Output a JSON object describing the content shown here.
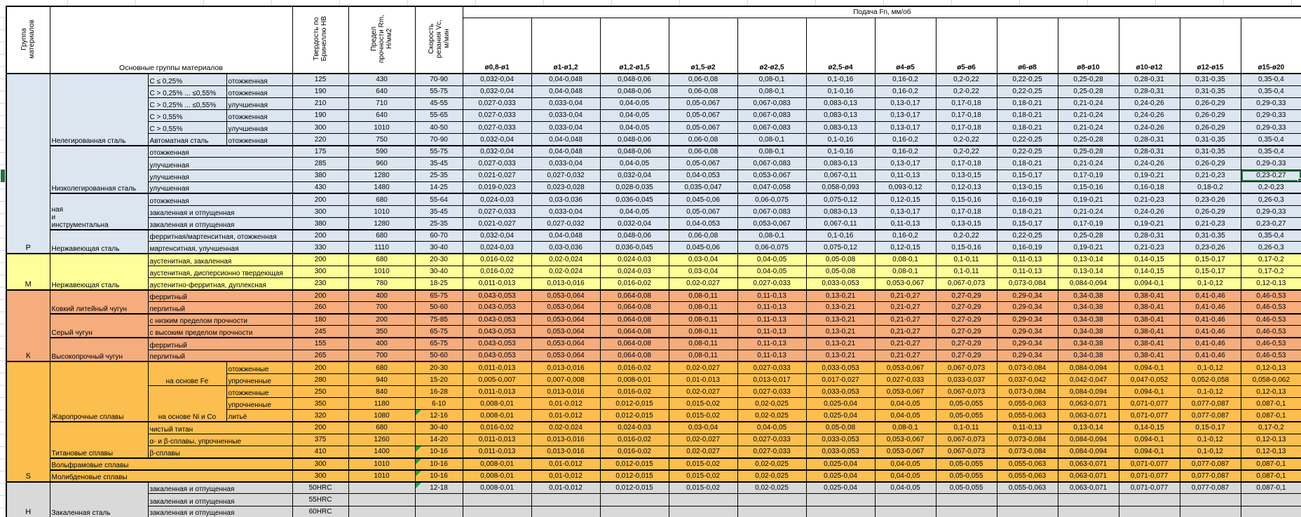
{
  "sheet": {
    "headers": {
      "group_column": "Группа\nматериалов",
      "main_groups": "Основные группы материалов",
      "hardness": "Твердость по\nБринеллю НВ",
      "strength": "Предел\nпрочности Rm,\nН/мм2",
      "speed": "Скорость\nрезания Vc,\nм/мин",
      "feed": "Подача Fn, мм/об",
      "diameters": [
        "ø0,8-ø1",
        "ø1-ø1,2",
        "ø1,2-ø1,5",
        "ø1,5-ø2",
        "ø2-ø2,5",
        "ø2,5-ø4",
        "ø4-ø5",
        "ø5-ø6",
        "ø6-ø8",
        "ø8-ø10",
        "ø10-ø12",
        "ø12-ø15",
        "ø15-ø20"
      ]
    },
    "colors": {
      "P": "#DCE6F1",
      "M": "#FFFF99",
      "K": "#F5AD7D",
      "S": "#FCBF4F",
      "H": "#D9D9D9",
      "selection": "#1F7244",
      "flag": "#21A038",
      "grid": "#000000"
    },
    "value_sets": {
      "V1": [
        "0,032-0,04",
        "0,04-0,048",
        "0,048-0,06",
        "0,06-0,08",
        "0,08-0,1",
        "0,1-0,16",
        "0,16-0,2",
        "0,2-0,22",
        "0,22-0,25",
        "0,25-0,28",
        "0,28-0,31",
        "0,31-0,35",
        "0,35-0,4"
      ],
      "V2": [
        "0,027-0,033",
        "0,033-0,04",
        "0,04-0,05",
        "0,05-0,067",
        "0,067-0,083",
        "0,083-0,13",
        "0,13-0,17",
        "0,17-0,18",
        "0,18-0,21",
        "0,21-0,24",
        "0,24-0,26",
        "0,26-0,29",
        "0,29-0,33"
      ],
      "V3": [
        "0,021-0,027",
        "0,027-0,032",
        "0,032-0,04",
        "0,04-0,053",
        "0,053-0,067",
        "0,067-0,11",
        "0,11-0,13",
        "0,13-0,15",
        "0,15-0,17",
        "0,17-0,19",
        "0,19-0,21",
        "0,21-0,23",
        "0,23-0,27"
      ],
      "V4": [
        "0,019-0,023",
        "0,023-0,028",
        "0,028-0,035",
        "0,035-0,047",
        "0,047-0,058",
        "0,058-0,093",
        "0,093-0,12",
        "0,12-0,13",
        "0,13-0,15",
        "0,15-0,16",
        "0,16-0,18",
        "0,18-0,2",
        "0,2-0,23"
      ],
      "V5": [
        "0,024-0,03",
        "0,03-0,036",
        "0,036-0,045",
        "0,045-0,06",
        "0,06-0,075",
        "0,075-0,12",
        "0,12-0,15",
        "0,15-0,16",
        "0,16-0,19",
        "0,19-0,21",
        "0,21-0,23",
        "0,23-0,26",
        "0,26-0,3"
      ],
      "V6": [
        "0,016-0,02",
        "0,02-0,024",
        "0,024-0,03",
        "0,03-0,04",
        "0,04-0,05",
        "0,05-0,08",
        "0,08-0,1",
        "0,1-0,11",
        "0,11-0,13",
        "0,13-0,14",
        "0,14-0,15",
        "0,15-0,17",
        "0,17-0,2"
      ],
      "V7": [
        "0,011-0,013",
        "0,013-0,016",
        "0,016-0,02",
        "0,02-0,027",
        "0,027-0,033",
        "0,033-0,053",
        "0,053-0,067",
        "0,067-0,073",
        "0,073-0,084",
        "0,084-0,094",
        "0,094-0,1",
        "0,1-0,12",
        "0,12-0,13"
      ],
      "V8": [
        "0,043-0,053",
        "0,053-0,064",
        "0,064-0,08",
        "0,08-0,11",
        "0,11-0,13",
        "0,13-0,21",
        "0,21-0,27",
        "0,27-0,29",
        "0,29-0,34",
        "0,34-0,38",
        "0,38-0,41",
        "0,41-0,46",
        "0,46-0,53"
      ],
      "V9": [
        "0,005-0,007",
        "0,007-0,008",
        "0,008-0,01",
        "0,01-0,013",
        "0,013-0,017",
        "0,017-0,027",
        "0,027-0,033",
        "0,033-0,037",
        "0,037-0,042",
        "0,042-0,047",
        "0,047-0,052",
        "0,052-0,058",
        "0,058-0,062"
      ],
      "V10": [
        "0,008-0,01",
        "0,01-0,012",
        "0,012-0,015",
        "0,015-0,02",
        "0,02-0,025",
        "0,025-0,04",
        "0,04-0,05",
        "0,05-0,055",
        "0,055-0,063",
        "0,063-0,071",
        "0,071-0,077",
        "0,077-0,087",
        "0,087-0,1"
      ]
    },
    "sections": [
      {
        "id": "P",
        "letter": "Р",
        "rows": [
          {
            "b": [
              "Нелегированная сталь",
              6
            ],
            "c": "C ≤ 0,25%",
            "d": "отожженная",
            "hb": "125",
            "rm": "430",
            "vc": "70-90",
            "v": "V1"
          },
          {
            "c": "C > 0,25% ... ≤0,55%",
            "d": "отожженная",
            "hb": "190",
            "rm": "640",
            "vc": "55-75",
            "v": "V1"
          },
          {
            "c": "C > 0,25% ... ≤0,55%",
            "d": "улучшенная",
            "hb": "210",
            "rm": "710",
            "vc": "45-55",
            "v": "V2"
          },
          {
            "c": "C > 0,55%",
            "d": "отожженная",
            "hb": "190",
            "rm": "640",
            "vc": "55-65",
            "v": "V2"
          },
          {
            "c": "C > 0,55%",
            "d": "улучшенная",
            "hb": "300",
            "rm": "1010",
            "vc": "40-50",
            "v": "V2"
          },
          {
            "c": "Автоматная сталь",
            "d": "отожженная",
            "hb": "220",
            "rm": "750",
            "vc": "70-90",
            "v": "V1"
          },
          {
            "b": [
              "Низколегированная сталь",
              4
            ],
            "cd": "отожженная",
            "hb": "175",
            "rm": "590",
            "vc": "55-75",
            "v": "V1"
          },
          {
            "cd": "улучшенная",
            "hb": "285",
            "rm": "960",
            "vc": "35-45",
            "v": "V2"
          },
          {
            "cd": "улучшенная",
            "hb": "380",
            "rm": "1280",
            "vc": "25-35",
            "v": "V3",
            "sel": 12
          },
          {
            "cd": "улучшенная",
            "hb": "430",
            "rm": "1480",
            "vc": "14-25",
            "v": "V4"
          },
          {
            "b": [
              "ная\nи\nинструментальна",
              3
            ],
            "cd": "отожженная",
            "hb": "200",
            "rm": "680",
            "vc": "55-64",
            "v": "V5"
          },
          {
            "cd": "закаленная и отпущенная",
            "hb": "300",
            "rm": "1010",
            "vc": "35-45",
            "v": "V2"
          },
          {
            "cd": "закаленная и отпущенная",
            "hb": "380",
            "rm": "1280",
            "vc": "25-35",
            "v": "V3"
          },
          {
            "b": [
              "Нержавеющая сталь",
              2
            ],
            "cd": "ферритная/мартенситная, отожженная",
            "hb": "200",
            "rm": "680",
            "vc": "60-70",
            "v": "V1"
          },
          {
            "cd": "мартенситная, улучшенная",
            "hb": "330",
            "rm": "1110",
            "vc": "30-40",
            "v": "V5"
          }
        ]
      },
      {
        "id": "M",
        "letter": "М",
        "rows": [
          {
            "b": [
              "Нержавеющая сталь",
              3
            ],
            "cd": "аустенитная, закаленная",
            "hb": "200",
            "rm": "680",
            "vc": "20-30",
            "v": "V6"
          },
          {
            "cd": "аустенитная, дисперсионно твердеющая",
            "hb": "300",
            "rm": "1010",
            "vc": "30-40",
            "v": "V6"
          },
          {
            "cd": "аустенитно-ферритная, дуплексная",
            "hb": "230",
            "rm": "780",
            "vc": "18-25",
            "v": "V7"
          }
        ]
      },
      {
        "id": "K",
        "letter": "К",
        "rows": [
          {
            "b": [
              "Ковкий литейный чугун",
              2
            ],
            "cd": "ферритный",
            "hb": "200",
            "rm": "400",
            "vc": "65-75",
            "v": "V8"
          },
          {
            "cd": "перлитный",
            "hb": "260",
            "rm": "700",
            "vc": "50-60",
            "v": "V8"
          },
          {
            "b": [
              "Серый чугун",
              2
            ],
            "cd": "с низким пределом прочности",
            "hb": "180",
            "rm": "200",
            "vc": "75-85",
            "v": "V8"
          },
          {
            "cd": "с высоким пределом прочности",
            "hb": "245",
            "rm": "350",
            "vc": "65-75",
            "v": "V8"
          },
          {
            "b": [
              "Высокопрочный чугун",
              2
            ],
            "cd": "ферритный",
            "hb": "155",
            "rm": "400",
            "vc": "65-75",
            "v": "V8"
          },
          {
            "cd": "перлитный",
            "hb": "265",
            "rm": "700",
            "vc": "50-60",
            "v": "V8"
          }
        ]
      },
      {
        "id": "S",
        "letter": "S",
        "rows": [
          {
            "b": [
              "Жаропрочные сплавы",
              5
            ],
            "c2": [
              "на основе Fe",
              2
            ],
            "d": "отожженные",
            "hb": "200",
            "rm": "680",
            "vc": "20-30",
            "v": "V7"
          },
          {
            "d": "упрочненные",
            "hb": "280",
            "rm": "940",
            "vc": "15-20",
            "v": "V9"
          },
          {
            "c2": [
              "на основе Ni и Co",
              3
            ],
            "d": "отожженные",
            "hb": "250",
            "rm": "840",
            "vc": "16-28",
            "v": "V7"
          },
          {
            "d": "упрочненные",
            "hb": "350",
            "rm": "1180",
            "vc": "6-10",
            "v": "V10"
          },
          {
            "d": "литьё",
            "hb": "320",
            "rm": "1080",
            "vc": "12-16",
            "v": "V10",
            "flag": true
          },
          {
            "b": [
              "Титановые сплавы",
              3
            ],
            "cd": "чистый титан",
            "hb": "200",
            "rm": "680",
            "vc": "30-40",
            "v": "V6"
          },
          {
            "cd": "α- и β-сплавы, упрочненные",
            "hb": "375",
            "rm": "1260",
            "vc": "14-20",
            "v": "V7"
          },
          {
            "cd": "β-сплавы",
            "hb": "410",
            "rm": "1400",
            "vc": "10-16",
            "v": "V7",
            "flag": true
          },
          {
            "bcd": "Вольфрамовые сплавы",
            "hb": "300",
            "rm": "1010",
            "vc": "10-16",
            "v": "V10",
            "flag": true
          },
          {
            "bcd": "Молибденовые сплавы",
            "hb": "300",
            "rm": "1010",
            "vc": "10-16",
            "v": "V10",
            "flag": true
          }
        ]
      },
      {
        "id": "H",
        "letter": "Н",
        "rows": [
          {
            "b": [
              "Закаленная сталь",
              3
            ],
            "cd": "закаленная и отпущенная",
            "hb": "50HRC",
            "rm": "",
            "vc": "12-18",
            "v": "V10",
            "flag": true
          },
          {
            "cd": "закаленная и отпущенная",
            "hb": "55HRC",
            "rm": "",
            "vc": "",
            "v": null
          },
          {
            "cd": "закаленная и отпущенная",
            "hb": "60HRC",
            "rm": "",
            "vc": "",
            "v": null
          }
        ]
      }
    ]
  }
}
